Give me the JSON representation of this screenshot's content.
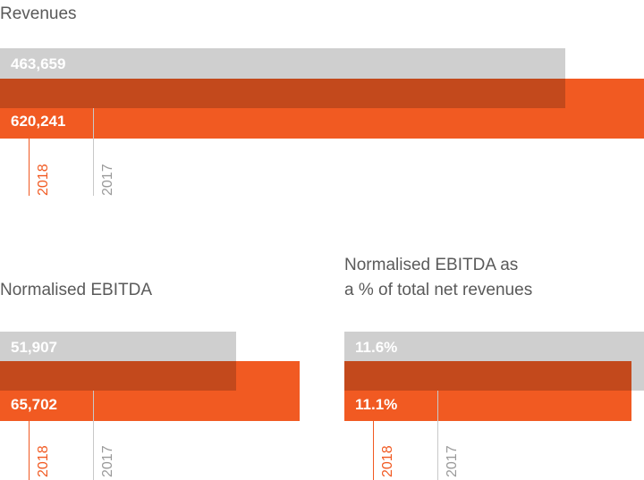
{
  "charts": [
    {
      "title": "Revenues"
    },
    {
      "title": "Normalised EBITDA"
    },
    {
      "title_line1": "Normalised EBITDA as",
      "title_line2": "a % of total net revenues"
    }
  ],
  "colors": {
    "current": "#f15a22",
    "previous": "#cfcfcf",
    "overlap": "#c4481d"
  },
  "chart_data": [
    {
      "type": "bar",
      "title": "Revenues",
      "categories": [
        "2017",
        "2018"
      ],
      "values": [
        463659,
        620241
      ],
      "value_labels": [
        "463,659",
        "620,241"
      ]
    },
    {
      "type": "bar",
      "title": "Normalised EBITDA",
      "categories": [
        "2017",
        "2018"
      ],
      "values": [
        51907,
        65702
      ],
      "value_labels": [
        "51,907",
        "65,702"
      ]
    },
    {
      "type": "bar",
      "title": "Normalised EBITDA as a % of total net revenues",
      "categories": [
        "2017",
        "2018"
      ],
      "values": [
        11.6,
        11.1
      ],
      "value_labels": [
        "11.6%",
        "11.1%"
      ]
    }
  ]
}
